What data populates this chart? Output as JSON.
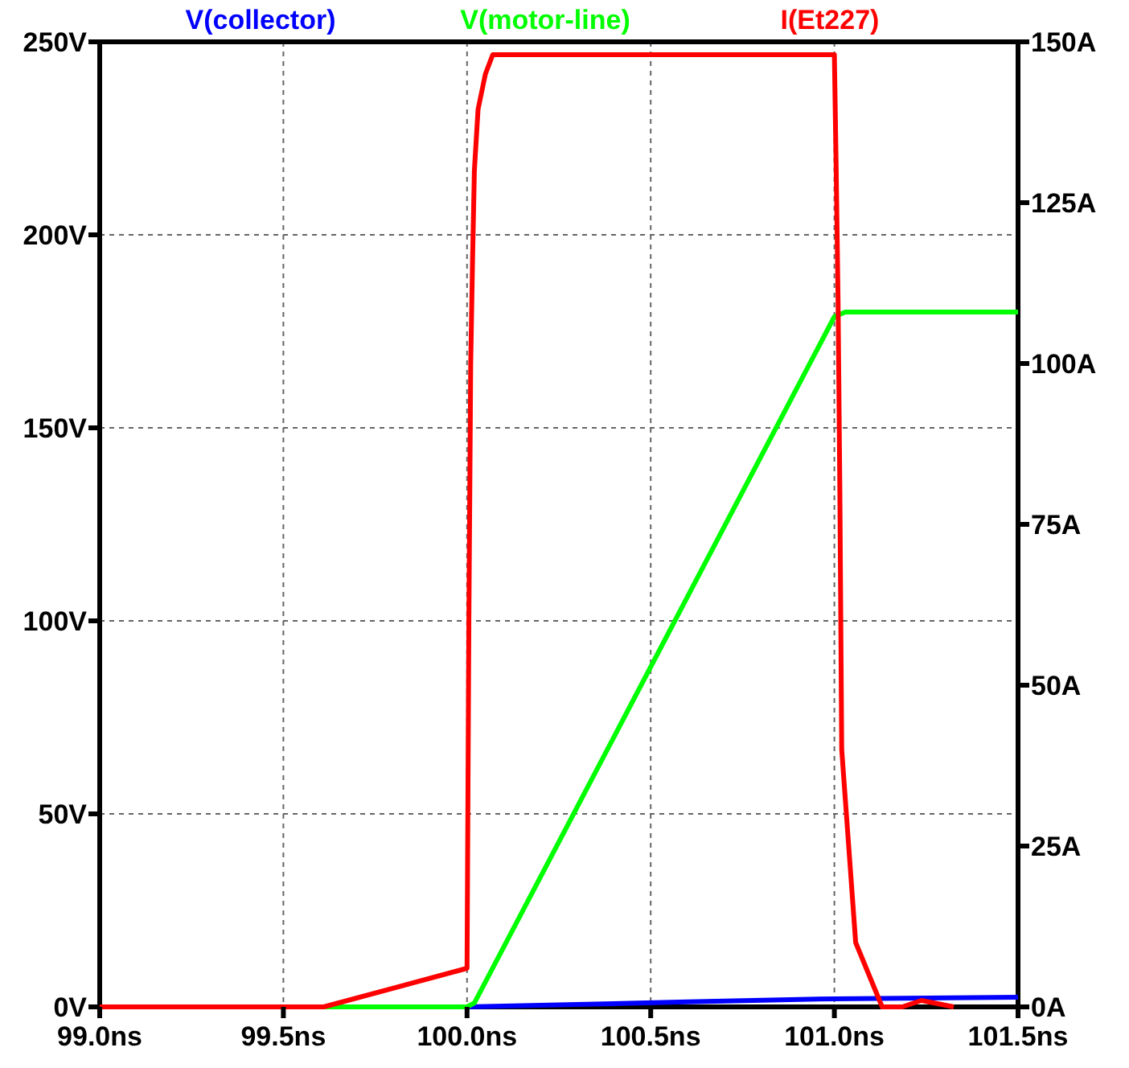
{
  "chart_data": {
    "type": "line",
    "xlim": [
      99.0,
      101.5
    ],
    "xticks": [
      {
        "value": 99.0,
        "label": "99.0ns"
      },
      {
        "value": 99.5,
        "label": "99.5ns"
      },
      {
        "value": 100.0,
        "label": "100.0ns"
      },
      {
        "value": 100.5,
        "label": "100.5ns"
      },
      {
        "value": 101.0,
        "label": "101.0ns"
      },
      {
        "value": 101.5,
        "label": "101.5ns"
      }
    ],
    "ylim": [
      0,
      250
    ],
    "yticks": [
      {
        "value": 0,
        "label": "0V"
      },
      {
        "value": 50,
        "label": "50V"
      },
      {
        "value": 100,
        "label": "100V"
      },
      {
        "value": 150,
        "label": "150V"
      },
      {
        "value": 200,
        "label": "200V"
      },
      {
        "value": 250,
        "label": "250V"
      }
    ],
    "y2lim": [
      0,
      150
    ],
    "y2ticks": [
      {
        "value": 0,
        "label": "0A"
      },
      {
        "value": 25,
        "label": "25A"
      },
      {
        "value": 50,
        "label": "50A"
      },
      {
        "value": 75,
        "label": "75A"
      },
      {
        "value": 100,
        "label": "100A"
      },
      {
        "value": 125,
        "label": "125A"
      },
      {
        "value": 150,
        "label": "150A"
      }
    ],
    "grid": true,
    "legend": "top",
    "marker": "none",
    "line_style": "solid",
    "series": [
      {
        "name": "V(collector)",
        "color": "#0000ff",
        "x": [
          99.0,
          100.0,
          100.3,
          100.6,
          101.0,
          101.5
        ],
        "values": [
          0,
          0,
          0.6,
          1.3,
          2.1,
          2.5
        ]
      },
      {
        "name": "V(motor-line)",
        "color": "#00ff00",
        "x": [
          99.0,
          100.0,
          100.02,
          101.0,
          101.03,
          101.5
        ],
        "values": [
          0,
          0,
          1,
          178.8,
          180,
          180
        ]
      },
      {
        "name": "I(Et227)",
        "color": "#ff0000",
        "axis": "y2",
        "x": [
          99.0,
          99.61,
          100.0,
          100.005,
          100.01,
          100.015,
          100.02,
          100.03,
          100.05,
          100.07,
          101.0,
          101.005,
          101.01,
          101.015,
          101.02,
          101.058,
          101.13,
          101.185,
          101.237,
          101.325
        ],
        "values": [
          0,
          0,
          6,
          60,
          100,
          116,
          130,
          139.5,
          145,
          148,
          148,
          130,
          110,
          80,
          40,
          10,
          0,
          0,
          1,
          0
        ]
      }
    ]
  }
}
